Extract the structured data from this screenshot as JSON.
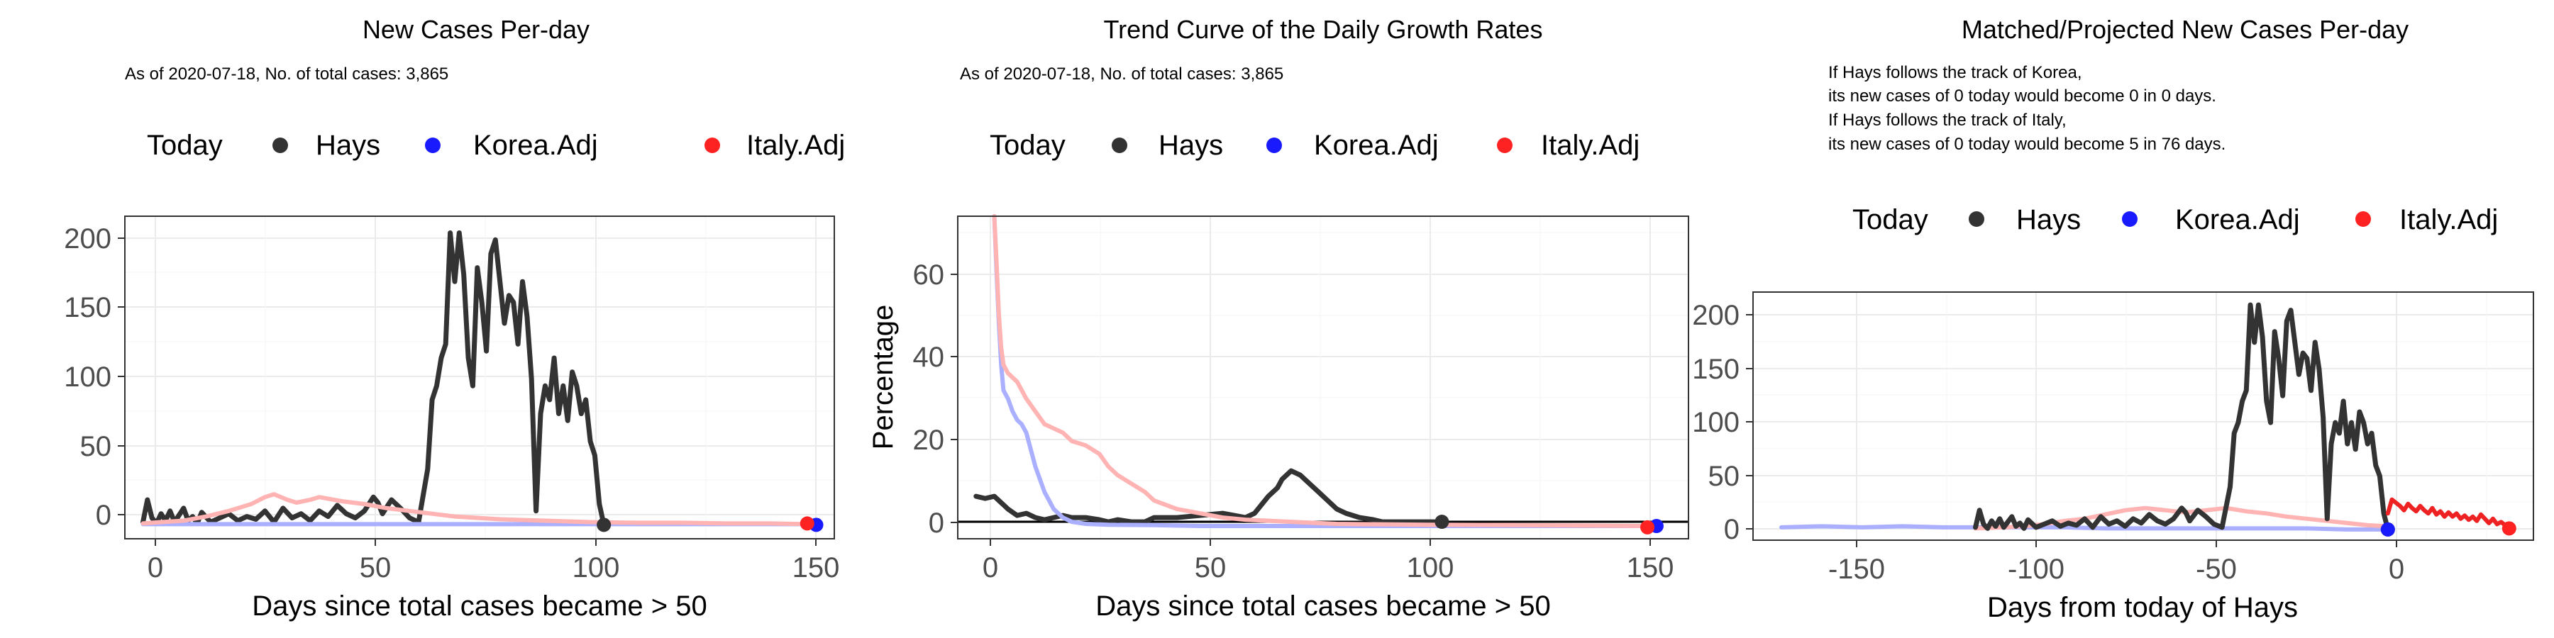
{
  "colors": {
    "hays": "#333333",
    "korea_line": "#aab0ff",
    "korea_point": "#1a1aff",
    "italy_line": "#ffb3b3",
    "italy_point": "#ff2222",
    "italy_proj": "#ee2222",
    "grid": "#ebebeb",
    "frame": "#333333"
  },
  "legend": {
    "today": "Today",
    "hays": "Hays",
    "korea": "Korea.Adj",
    "italy": "Italy.Adj"
  },
  "chart_data": [
    {
      "type": "line",
      "title": "New Cases Per-day",
      "subtitle": "As of 2020-07-18, No. of total cases: 3,865",
      "xlabel": "Days since total cases became > 50",
      "ylabel": "",
      "xlim": [
        -3,
        154
      ],
      "ylim": [
        -10,
        222
      ],
      "xticks": [
        0,
        50,
        100,
        150
      ],
      "yticks": [
        0,
        50,
        100,
        150,
        200
      ],
      "legend_position": "top",
      "series": [
        {
          "name": "Hays",
          "x": [
            1,
            2,
            3,
            4,
            5,
            6,
            7,
            8,
            9,
            10,
            11,
            12,
            13,
            14,
            16,
            18,
            20,
            22,
            24,
            26,
            28,
            30,
            32,
            34,
            36,
            38,
            40,
            42,
            44,
            46,
            48,
            50,
            52,
            53,
            54,
            56,
            58,
            60,
            62,
            64,
            65,
            66,
            67,
            68,
            69,
            70,
            71,
            72,
            73,
            74,
            75,
            76,
            77,
            78,
            79,
            80,
            81,
            82,
            83,
            84,
            85,
            86,
            87,
            88,
            89,
            90,
            91,
            92,
            93,
            94,
            95,
            96,
            97,
            98,
            99,
            100,
            101,
            102,
            103
          ],
          "y": [
            2,
            18,
            5,
            1,
            8,
            3,
            10,
            2,
            7,
            12,
            3,
            6,
            1,
            9,
            2,
            5,
            8,
            3,
            6,
            4,
            10,
            2,
            12,
            5,
            8,
            3,
            10,
            6,
            14,
            8,
            5,
            10,
            20,
            16,
            8,
            18,
            12,
            5,
            2,
            40,
            90,
            100,
            120,
            130,
            210,
            175,
            210,
            180,
            120,
            100,
            185,
            160,
            125,
            195,
            205,
            175,
            145,
            165,
            160,
            130,
            175,
            150,
            105,
            10,
            80,
            100,
            90,
            120,
            80,
            100,
            75,
            110,
            100,
            80,
            90,
            60,
            50,
            15,
            0
          ],
          "color_key": "hays"
        },
        {
          "name": "Korea.Adj",
          "x": [
            1,
            150
          ],
          "y": [
            0.5,
            0.5
          ],
          "color_key": "korea_line"
        },
        {
          "name": "Italy.Adj",
          "x": [
            1,
            5,
            10,
            15,
            20,
            22,
            25,
            28,
            30,
            33,
            35,
            38,
            40,
            45,
            50,
            55,
            60,
            65,
            70,
            80,
            90,
            100,
            110,
            120,
            130,
            140,
            148
          ],
          "y": [
            1,
            2,
            3,
            6,
            10,
            12,
            15,
            20,
            22,
            18,
            16,
            18,
            20,
            17,
            15,
            12,
            10,
            8,
            6,
            4,
            3,
            2,
            1.5,
            1.5,
            1,
            1,
            0.5
          ],
          "color_key": "italy_line"
        }
      ],
      "today_points": [
        {
          "name": "Hays",
          "x": 103,
          "y": 0,
          "color_key": "hays"
        },
        {
          "name": "Korea.Adj",
          "x": 150,
          "y": 0,
          "color_key": "korea_point"
        },
        {
          "name": "Italy.Adj",
          "x": 148,
          "y": 1,
          "color_key": "italy_point"
        }
      ]
    },
    {
      "type": "line",
      "title": "Trend Curve of the Daily Growth Rates",
      "subtitle": "As of 2020-07-18, No. of total cases: 3,865",
      "xlabel": "Days since total cases became > 50",
      "ylabel": "Percentage",
      "xlim": [
        -3,
        157
      ],
      "ylim": [
        -3,
        73
      ],
      "xticks": [
        0,
        50,
        100,
        150
      ],
      "yticks": [
        0,
        20,
        40,
        60
      ],
      "hline": 1,
      "legend_position": "top",
      "series": [
        {
          "name": "Hays",
          "x": [
            1,
            3,
            5,
            6,
            7,
            8,
            10,
            12,
            14,
            16,
            18,
            20,
            22,
            25,
            28,
            30,
            32,
            35,
            38,
            40,
            45,
            50,
            55,
            60,
            62,
            65,
            67,
            68,
            70,
            72,
            74,
            76,
            78,
            80,
            82,
            85,
            88,
            90,
            95,
            100,
            103
          ],
          "y": [
            7,
            6.5,
            7,
            6,
            5,
            4,
            2.5,
            3,
            2,
            1.5,
            2,
            2.5,
            2,
            2,
            1.5,
            1,
            1.5,
            1,
            1,
            2,
            2,
            2.5,
            3,
            2,
            3,
            7,
            9,
            11,
            13,
            12,
            10,
            8,
            6,
            4,
            3,
            2,
            1.5,
            1,
            1,
            1,
            1
          ],
          "color_key": "hays"
        },
        {
          "name": "Korea.Adj",
          "x": [
            5,
            5.5,
            6,
            6.5,
            7,
            8,
            9,
            10,
            11,
            12,
            13,
            14,
            15,
            16,
            17,
            18,
            19,
            20,
            22,
            25,
            30,
            40,
            50,
            70,
            100,
            150
          ],
          "y": [
            73,
            60,
            48,
            38,
            32,
            30,
            27,
            25,
            24,
            22,
            18,
            14,
            11,
            8,
            6,
            4,
            3,
            2,
            1,
            0.5,
            0.3,
            0.2,
            0,
            0,
            0,
            0
          ],
          "color_key": "korea_line"
        },
        {
          "name": "Italy.Adj",
          "x": [
            5,
            5.5,
            6,
            6.5,
            7,
            8,
            10,
            12,
            14,
            16,
            18,
            20,
            22,
            25,
            28,
            30,
            32,
            35,
            38,
            40,
            45,
            50,
            55,
            60,
            70,
            80,
            100,
            120,
            148
          ],
          "y": [
            73,
            62,
            50,
            42,
            38,
            36,
            34,
            30,
            27,
            24,
            23,
            22,
            20,
            19,
            17,
            14,
            12,
            10,
            8,
            6,
            4,
            3,
            2,
            1.5,
            1,
            0.5,
            0.3,
            0.2,
            0
          ],
          "color_key": "italy_line"
        }
      ],
      "today_points": [
        {
          "name": "Hays",
          "x": 103,
          "y": 1,
          "color_key": "hays"
        },
        {
          "name": "Korea.Adj",
          "x": 150,
          "y": 0,
          "color_key": "korea_point"
        },
        {
          "name": "Italy.Adj",
          "x": 148,
          "y": -0.3,
          "color_key": "italy_point"
        }
      ]
    },
    {
      "type": "line",
      "title": "Matched/Projected New Cases Per-day",
      "subtitle": "",
      "notes": [
        "If Hays follows the track of Korea,",
        "its new cases of 0 today would become 0 in 0 days.",
        "If Hays follows the track of Italy,",
        "its new cases of 0 today would become 5 in 76 days."
      ],
      "xlabel": "Days from today of Hays",
      "ylabel": "",
      "xlim": [
        -157,
        36
      ],
      "ylim": [
        -10,
        222
      ],
      "xticks": [
        -150,
        -100,
        -50,
        0
      ],
      "yticks": [
        0,
        50,
        100,
        150,
        200
      ],
      "legend_position": "top",
      "series": [
        {
          "name": "Korea.Adj",
          "x": [
            -150,
            -140,
            -130,
            -120,
            -110,
            -100,
            -90,
            -80,
            -70,
            -60,
            -50,
            -40,
            -30,
            -20,
            -10,
            0
          ],
          "y": [
            2,
            3,
            2,
            3,
            2,
            2,
            2,
            2,
            1,
            1,
            1,
            1,
            1,
            1,
            0,
            0
          ],
          "color_key": "korea_line"
        },
        {
          "name": "Italy.Adj",
          "x": [
            -102,
            -95,
            -90,
            -85,
            -80,
            -75,
            -70,
            -65,
            -60,
            -55,
            -50,
            -45,
            -40,
            -35,
            -30,
            -25,
            -20,
            -15,
            -10,
            -5,
            0
          ],
          "y": [
            1,
            2,
            3,
            5,
            8,
            10,
            14,
            18,
            20,
            18,
            16,
            18,
            20,
            17,
            15,
            12,
            10,
            8,
            6,
            4,
            3
          ],
          "color_key": "italy_line"
        },
        {
          "name": "Hays",
          "x": [
            -102,
            -101,
            -100,
            -99,
            -98,
            -97,
            -96,
            -95,
            -94,
            -93,
            -92,
            -91,
            -90,
            -89,
            -87,
            -85,
            -83,
            -81,
            -79,
            -77,
            -75,
            -73,
            -71,
            -69,
            -67,
            -65,
            -63,
            -61,
            -59,
            -57,
            -55,
            -53,
            -51,
            -50,
            -49,
            -47,
            -45,
            -43,
            -41,
            -39,
            -38,
            -37,
            -36,
            -35,
            -34,
            -33,
            -32,
            -31,
            -30,
            -29,
            -28,
            -27,
            -26,
            -25,
            -24,
            -23,
            -22,
            -21,
            -20,
            -19,
            -18,
            -17,
            -16,
            -15,
            -14,
            -13,
            -12,
            -11,
            -10,
            -9,
            -8,
            -7,
            -6,
            -5,
            -4,
            -3,
            -2,
            -1,
            0
          ],
          "y": [
            2,
            18,
            5,
            1,
            8,
            3,
            10,
            2,
            7,
            12,
            3,
            6,
            1,
            9,
            2,
            5,
            8,
            3,
            6,
            4,
            10,
            2,
            12,
            5,
            8,
            3,
            10,
            6,
            14,
            8,
            5,
            10,
            20,
            16,
            8,
            18,
            12,
            5,
            2,
            40,
            90,
            100,
            120,
            130,
            210,
            175,
            210,
            180,
            120,
            100,
            185,
            160,
            125,
            195,
            205,
            175,
            145,
            165,
            160,
            130,
            175,
            150,
            105,
            10,
            80,
            100,
            90,
            120,
            80,
            100,
            75,
            110,
            100,
            80,
            90,
            60,
            50,
            15,
            0
          ],
          "color_key": "hays"
        },
        {
          "name": "Italy.Adj",
          "x": [
            0,
            1,
            2,
            3,
            4,
            5,
            6,
            7,
            8,
            9,
            10,
            11,
            12,
            13,
            14,
            15,
            16,
            17,
            18,
            19,
            20,
            21,
            22,
            23,
            24,
            25,
            26,
            27,
            28,
            29,
            30
          ],
          "y": [
            15,
            28,
            25,
            22,
            18,
            24,
            20,
            17,
            22,
            18,
            15,
            20,
            14,
            17,
            12,
            16,
            12,
            15,
            10,
            13,
            9,
            12,
            8,
            14,
            10,
            6,
            10,
            5,
            7,
            4,
            3
          ],
          "color_key": "italy_proj"
        }
      ],
      "today_points": [
        {
          "name": "Hays",
          "x": 0,
          "y": 0,
          "color_key": "hays"
        },
        {
          "name": "Korea.Adj",
          "x": 0,
          "y": 0,
          "color_key": "korea_point"
        },
        {
          "name": "Italy.Adj",
          "x": 30,
          "y": 1,
          "color_key": "italy_point"
        }
      ]
    }
  ]
}
